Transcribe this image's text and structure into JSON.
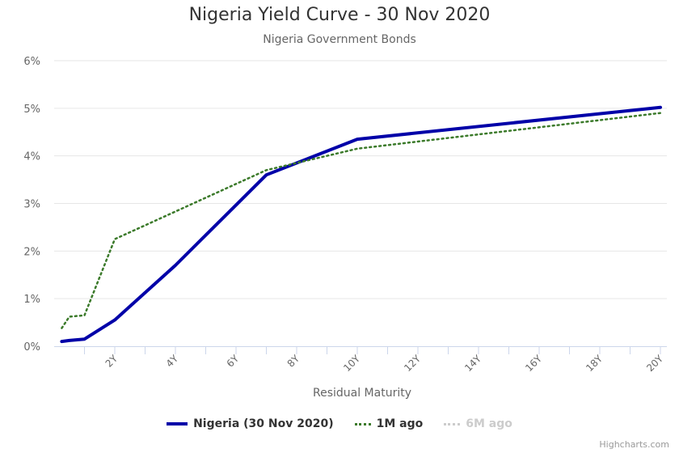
{
  "chart_data": {
    "type": "line",
    "title": "Nigeria Yield Curve - 30 Nov 2020",
    "subtitle": "Nigeria Government Bonds",
    "xlabel": "Residual Maturity",
    "ylabel": "",
    "xlim": [
      0,
      20
    ],
    "ylim": [
      0,
      6
    ],
    "x_ticks": [
      "2Y",
      "4Y",
      "6Y",
      "8Y",
      "10Y",
      "12Y",
      "14Y",
      "16Y",
      "18Y",
      "20Y"
    ],
    "y_ticks": [
      "0%",
      "1%",
      "2%",
      "3%",
      "4%",
      "5%",
      "6%"
    ],
    "grid": true,
    "legend_position": "bottom",
    "series": [
      {
        "name": "Nigeria (30 Nov 2020)",
        "color": "#0000A8",
        "style": "solid",
        "visible": true,
        "x": [
          0.25,
          0.5,
          1,
          2,
          4,
          7,
          10,
          20
        ],
        "values": [
          0.1,
          0.12,
          0.15,
          0.55,
          1.7,
          3.6,
          4.35,
          5.02
        ]
      },
      {
        "name": "1M ago",
        "color": "#3B7A2A",
        "style": "dotted",
        "visible": true,
        "x": [
          0.25,
          0.5,
          1,
          2,
          7,
          10,
          20
        ],
        "values": [
          0.38,
          0.62,
          0.65,
          2.25,
          3.7,
          4.15,
          4.9
        ]
      },
      {
        "name": "6M ago",
        "color": "#cccccc",
        "style": "dotted",
        "visible": false,
        "x": [],
        "values": []
      }
    ]
  },
  "credit": "Highcharts.com"
}
